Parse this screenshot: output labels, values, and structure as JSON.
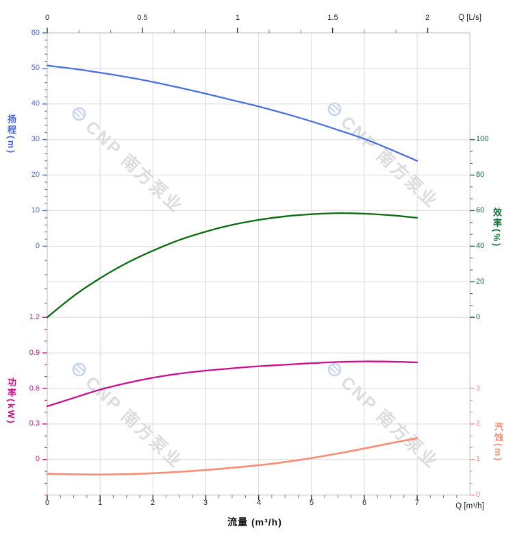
{
  "watermark": {
    "text": "CNP 南方泵业",
    "logo": "cnp-circle-logo",
    "logo_color": "#c7d3f0",
    "text_color": "#dcdcdc"
  },
  "axes": {
    "flow_top": {
      "unit_label": "Q [L/s]",
      "tick_labels": [
        "0",
        "0.5",
        "1",
        "1.5",
        "2"
      ],
      "tick_values": [
        0,
        0.5,
        1,
        1.5,
        2
      ],
      "color": "#222222"
    },
    "flow_bottom": {
      "unit_label": "Q [m³/h]",
      "title": "流量 (m³/h)",
      "tick_labels": [
        "0",
        "1",
        "2",
        "3",
        "4",
        "5",
        "6",
        "7"
      ],
      "tick_values": [
        0,
        1,
        2,
        3,
        4,
        5,
        6,
        7
      ],
      "range": [
        0,
        8
      ],
      "color": "#222222"
    },
    "head": {
      "title": "扬程(m)",
      "tick_labels": [
        "60",
        "50",
        "40",
        "30",
        "20",
        "10",
        "0"
      ],
      "tick_values": [
        60,
        50,
        40,
        30,
        20,
        10,
        0
      ],
      "color": "#4267d8"
    },
    "efficiency": {
      "title": "效率(%)",
      "tick_labels": [
        "100",
        "80",
        "60",
        "40",
        "20",
        "0"
      ],
      "tick_values": [
        100,
        80,
        60,
        40,
        20,
        0
      ],
      "color": "#0c7032"
    },
    "power": {
      "title": "功率(kW)",
      "tick_labels": [
        "1.2",
        "0.9",
        "0.6",
        "0.3",
        "0"
      ],
      "tick_values": [
        1.2,
        0.9,
        0.6,
        0.3,
        0
      ],
      "color": "#cb0c8d"
    },
    "npsh": {
      "title": "汽蚀(m)",
      "tick_labels": [
        "3",
        "2",
        "1",
        "0"
      ],
      "tick_values": [
        3,
        2,
        1,
        0
      ],
      "color": "#f58f79"
    }
  },
  "chart_data": {
    "type": "line",
    "title": "",
    "xlabel": "流量 (m³/h)",
    "x_unit": "m³/h",
    "x_secondary_unit": "L/s",
    "x_secondary_ticks": [
      0,
      0.5,
      1,
      1.5,
      2
    ],
    "x_range_m3h": [
      0,
      8
    ],
    "grid": true,
    "legend": "axis-colored labels, no legend box",
    "x": [
      0,
      0.5,
      1,
      1.5,
      2,
      2.5,
      3,
      3.5,
      4,
      4.5,
      5,
      5.5,
      6,
      6.5,
      7
    ],
    "series": [
      {
        "name": "扬程",
        "unit": "m",
        "axis": "head",
        "color": "#4a6fe0",
        "axis_range": [
          0,
          60
        ],
        "values": [
          50.8,
          49.9,
          48.8,
          47.6,
          46.2,
          44.6,
          42.9,
          41.1,
          39.3,
          37.3,
          35.1,
          32.7,
          30.2,
          27.2,
          24.0
        ]
      },
      {
        "name": "效率",
        "unit": "%",
        "axis": "efficiency",
        "color": "#0a6b0f",
        "axis_range": [
          0,
          100
        ],
        "values": [
          0,
          12,
          22,
          30.5,
          37.5,
          43.5,
          48.2,
          52,
          54.8,
          56.8,
          58,
          58.6,
          58.3,
          57.4,
          56
        ]
      },
      {
        "name": "功率",
        "unit": "kW",
        "axis": "power",
        "color": "#cb0c8d",
        "axis_range": [
          0,
          1.2
        ],
        "values": [
          0.45,
          0.52,
          0.59,
          0.645,
          0.69,
          0.725,
          0.75,
          0.77,
          0.787,
          0.8,
          0.813,
          0.823,
          0.828,
          0.826,
          0.82
        ]
      },
      {
        "name": "汽蚀",
        "unit": "m",
        "axis": "npsh",
        "color": "#f98c74",
        "axis_range": [
          0,
          3
        ],
        "values": [
          0.6,
          0.585,
          0.578,
          0.59,
          0.615,
          0.655,
          0.705,
          0.77,
          0.84,
          0.93,
          1.04,
          1.17,
          1.31,
          1.46,
          1.6
        ]
      }
    ]
  }
}
